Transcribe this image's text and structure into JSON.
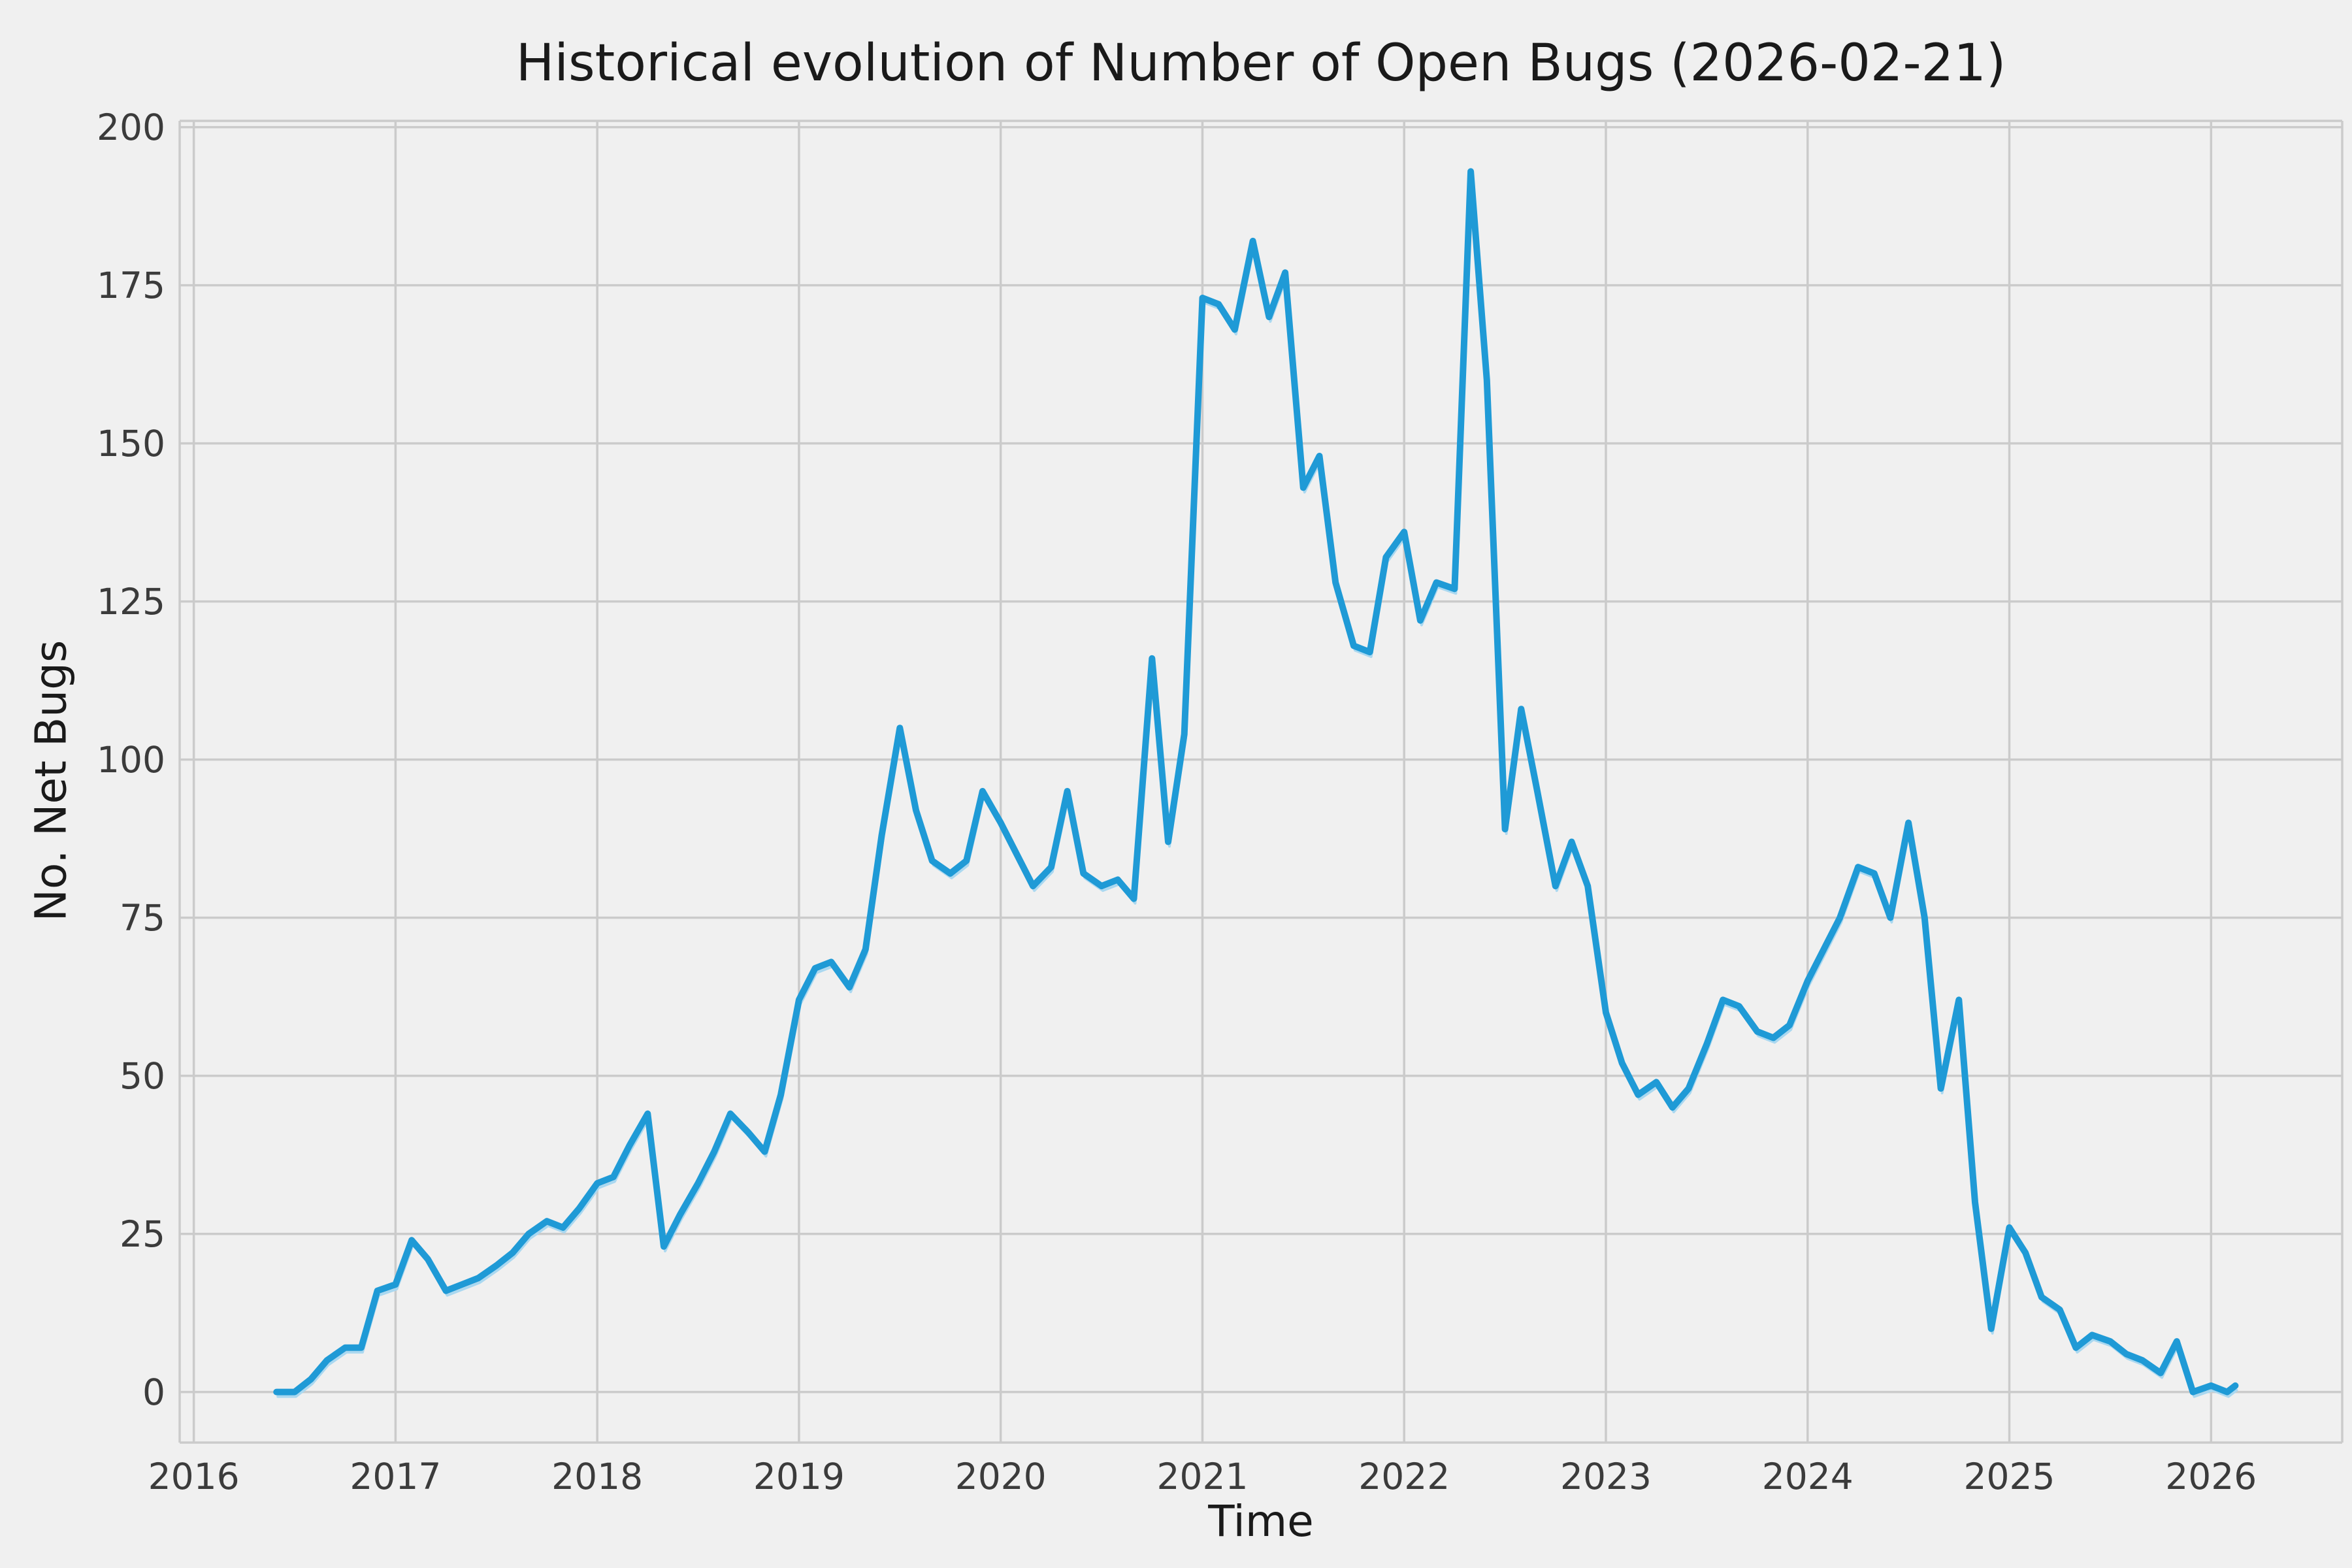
{
  "figure": {
    "title": "Historical evolution of Number of Open Bugs (2026-02-21)",
    "xlabel": "Time",
    "ylabel": "No. Net Bugs"
  },
  "chart_data": {
    "type": "line",
    "title": "Historical evolution of Number of Open Bugs (2026-02-21)",
    "xlabel": "Time",
    "ylabel": "No. Net Bugs",
    "grid": true,
    "legend": "none",
    "xlim": [
      2015.93,
      2026.65
    ],
    "ylim": [
      -8,
      201
    ],
    "x_ticks": [
      2016,
      2017,
      2018,
      2019,
      2020,
      2021,
      2022,
      2023,
      2024,
      2025,
      2026
    ],
    "x_tick_labels": [
      "2016",
      "2017",
      "2018",
      "2019",
      "2020",
      "2021",
      "2022",
      "2023",
      "2024",
      "2025",
      "2026"
    ],
    "y_ticks": [
      0,
      25,
      50,
      75,
      100,
      125,
      150,
      175,
      200
    ],
    "y_tick_labels": [
      "0",
      "25",
      "50",
      "75",
      "100",
      "125",
      "150",
      "175",
      "200"
    ],
    "background_color": "#f0f0f0",
    "grid_color": "#cbcbcb",
    "line_color": "#1f9ad6",
    "shadow_line_color": "#aad8f0",
    "text_color": "#262626",
    "series": [
      {
        "name": "open_bugs",
        "x": [
          2016.41,
          2016.5,
          2016.58,
          2016.66,
          2016.75,
          2016.83,
          2016.91,
          2017.0,
          2017.08,
          2017.16,
          2017.25,
          2017.33,
          2017.41,
          2017.5,
          2017.58,
          2017.66,
          2017.75,
          2017.83,
          2017.91,
          2018.0,
          2018.08,
          2018.16,
          2018.25,
          2018.33,
          2018.41,
          2018.5,
          2018.58,
          2018.66,
          2018.75,
          2018.83,
          2018.91,
          2019.0,
          2019.08,
          2019.16,
          2019.25,
          2019.33,
          2019.41,
          2019.5,
          2019.58,
          2019.66,
          2019.75,
          2019.83,
          2019.91,
          2020.0,
          2020.08,
          2020.16,
          2020.25,
          2020.33,
          2020.41,
          2020.5,
          2020.58,
          2020.66,
          2020.75,
          2020.83,
          2020.91,
          2021.0,
          2021.08,
          2021.16,
          2021.25,
          2021.33,
          2021.41,
          2021.5,
          2021.58,
          2021.66,
          2021.75,
          2021.83,
          2021.91,
          2022.0,
          2022.08,
          2022.16,
          2022.25,
          2022.33,
          2022.41,
          2022.5,
          2022.58,
          2022.66,
          2022.75,
          2022.83,
          2022.91,
          2023.0,
          2023.08,
          2023.16,
          2023.25,
          2023.33,
          2023.41,
          2023.5,
          2023.58,
          2023.66,
          2023.75,
          2023.83,
          2023.91,
          2024.0,
          2024.08,
          2024.16,
          2024.25,
          2024.33,
          2024.41,
          2024.5,
          2024.58,
          2024.66,
          2024.75,
          2024.83,
          2024.91,
          2025.0,
          2025.08,
          2025.16,
          2025.25,
          2025.33,
          2025.41,
          2025.5,
          2025.58,
          2025.66,
          2025.75,
          2025.83,
          2025.91,
          2026.0,
          2026.08,
          2026.12
        ],
        "y": [
          0,
          0,
          2,
          5,
          7,
          7,
          16,
          17,
          24,
          21,
          16,
          17,
          18,
          20,
          22,
          25,
          27,
          26,
          29,
          33,
          34,
          39,
          44,
          23,
          28,
          33,
          38,
          44,
          41,
          38,
          47,
          62,
          67,
          68,
          64,
          70,
          88,
          105,
          92,
          84,
          82,
          84,
          95,
          90,
          85,
          80,
          83,
          95,
          82,
          80,
          81,
          78,
          116,
          87,
          104,
          173,
          172,
          168,
          182,
          170,
          177,
          143,
          148,
          128,
          118,
          117,
          132,
          136,
          122,
          128,
          127,
          193,
          160,
          89,
          108,
          95,
          80,
          87,
          80,
          60,
          52,
          47,
          49,
          45,
          48,
          55,
          62,
          61,
          57,
          56,
          58,
          65,
          70,
          75,
          83,
          82,
          75,
          90,
          75,
          48,
          62,
          30,
          10,
          26,
          22,
          15,
          13,
          7,
          9,
          8,
          6,
          5,
          3,
          8,
          0,
          1,
          0,
          1
        ]
      }
    ]
  }
}
